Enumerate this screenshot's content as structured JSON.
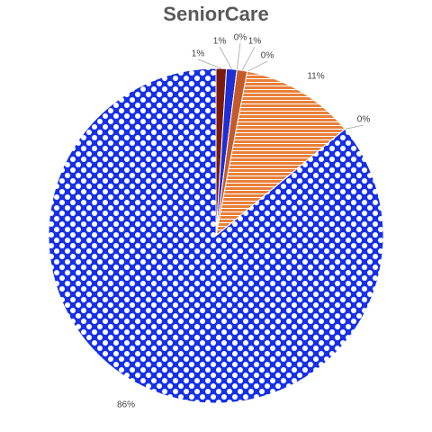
{
  "chart_data": {
    "type": "pie",
    "title": "SeniorCare",
    "categories": [
      null,
      null,
      null,
      null,
      null,
      null,
      null,
      null
    ],
    "values": [
      1,
      1,
      0,
      1,
      0,
      11,
      0,
      86
    ],
    "value_labels": [
      "1%",
      "1%",
      "0%",
      "1%",
      "0%",
      "11%",
      "0%",
      "86%"
    ],
    "colors": [
      "#7b1a0a",
      "#1f2fd6",
      "#e04020",
      "#c65a2a",
      "#6a3fb0",
      "#e8803a",
      "#2040c0",
      "#1530e8"
    ]
  }
}
